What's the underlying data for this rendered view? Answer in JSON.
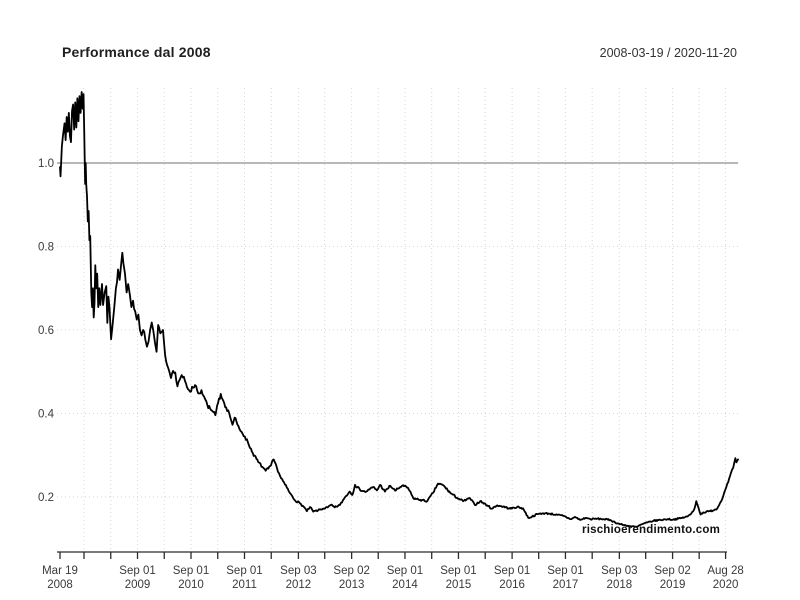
{
  "header": {
    "title": "Performance dal 2008",
    "date_range": "2008-03-19 / 2020-11-20"
  },
  "watermark": "rischioerendimento.com",
  "colors": {
    "line": "#000000",
    "baseline": "#8c8c8c",
    "grid_dotted": "#d6d6d6",
    "axis": "#2b2b2b",
    "tick_text": "#3a3a3a",
    "background": "#ffffff"
  },
  "chart_data": {
    "type": "line",
    "title": "Performance dal 2008",
    "subtitle_range": "2008-03-19 / 2020-11-20",
    "grid": {
      "h_dotted": [
        0.2,
        0.4,
        0.6,
        0.8
      ],
      "baseline_solid": 1.0,
      "v_dotted": "all-ticks-except-first"
    },
    "x_axis": {
      "start": 2008.215,
      "end": 2020.89,
      "major_ticks": [
        {
          "t": 2008.215,
          "line1": "Mar 19",
          "line2": "2008"
        },
        {
          "t": 2009.664,
          "line1": "Sep 01",
          "line2": "2009"
        },
        {
          "t": 2010.664,
          "line1": "Sep 01",
          "line2": "2010"
        },
        {
          "t": 2011.664,
          "line1": "Sep 01",
          "line2": "2011"
        },
        {
          "t": 2012.672,
          "line1": "Sep 03",
          "line2": "2012"
        },
        {
          "t": 2013.667,
          "line1": "Sep 02",
          "line2": "2013"
        },
        {
          "t": 2014.664,
          "line1": "Sep 01",
          "line2": "2014"
        },
        {
          "t": 2015.664,
          "line1": "Sep 01",
          "line2": "2015"
        },
        {
          "t": 2016.667,
          "line1": "Sep 01",
          "line2": "2016"
        },
        {
          "t": 2017.664,
          "line1": "Sep 01",
          "line2": "2017"
        },
        {
          "t": 2018.672,
          "line1": "Sep 03",
          "line2": "2018"
        },
        {
          "t": 2019.667,
          "line1": "Sep 02",
          "line2": "2019"
        },
        {
          "t": 2020.658,
          "line1": "Aug 28",
          "line2": "2020"
        }
      ],
      "minor_ticks": [
        2008.664,
        2009.164,
        2010.164,
        2011.164,
        2012.164,
        2013.164,
        2014.164,
        2015.164,
        2016.164,
        2017.164,
        2018.164,
        2019.164,
        2020.164
      ]
    },
    "y_axis": {
      "ticks": [
        1.0,
        0.8,
        0.6,
        0.4,
        0.2
      ],
      "labels": [
        "1.0",
        "0.8",
        "0.6",
        "0.4",
        "0.2"
      ],
      "range": [
        0.11,
        1.18
      ]
    },
    "series": [
      {
        "name": "performance",
        "color": "#000000",
        "points": [
          [
            2008.215,
            0.99
          ],
          [
            2008.225,
            0.968
          ],
          [
            2008.25,
            1.04
          ],
          [
            2008.27,
            1.065
          ],
          [
            2008.3,
            1.095
          ],
          [
            2008.32,
            1.055
          ],
          [
            2008.34,
            1.11
          ],
          [
            2008.36,
            1.075
          ],
          [
            2008.38,
            1.12
          ],
          [
            2008.4,
            1.065
          ],
          [
            2008.42,
            1.05
          ],
          [
            2008.44,
            1.125
          ],
          [
            2008.46,
            1.14
          ],
          [
            2008.48,
            1.08
          ],
          [
            2008.5,
            1.145
          ],
          [
            2008.52,
            1.085
          ],
          [
            2008.54,
            1.155
          ],
          [
            2008.56,
            1.1
          ],
          [
            2008.58,
            1.16
          ],
          [
            2008.6,
            1.12
          ],
          [
            2008.62,
            1.17
          ],
          [
            2008.64,
            1.13
          ],
          [
            2008.655,
            1.165
          ],
          [
            2008.67,
            1.06
          ],
          [
            2008.685,
            0.95
          ],
          [
            2008.695,
            1.0
          ],
          [
            2008.705,
            0.95
          ],
          [
            2008.72,
            0.92
          ],
          [
            2008.735,
            0.86
          ],
          [
            2008.75,
            0.885
          ],
          [
            2008.765,
            0.815
          ],
          [
            2008.78,
            0.825
          ],
          [
            2008.8,
            0.69
          ],
          [
            2008.815,
            0.655
          ],
          [
            2008.83,
            0.7
          ],
          [
            2008.845,
            0.63
          ],
          [
            2008.86,
            0.665
          ],
          [
            2008.875,
            0.755
          ],
          [
            2008.89,
            0.7
          ],
          [
            2008.91,
            0.735
          ],
          [
            2008.93,
            0.655
          ],
          [
            2008.95,
            0.7
          ],
          [
            2008.97,
            0.66
          ],
          [
            2009.0,
            0.71
          ],
          [
            2009.02,
            0.66
          ],
          [
            2009.05,
            0.69
          ],
          [
            2009.08,
            0.705
          ],
          [
            2009.1,
            0.617
          ],
          [
            2009.12,
            0.68
          ],
          [
            2009.14,
            0.655
          ],
          [
            2009.17,
            0.578
          ],
          [
            2009.2,
            0.615
          ],
          [
            2009.23,
            0.655
          ],
          [
            2009.26,
            0.7
          ],
          [
            2009.3,
            0.745
          ],
          [
            2009.33,
            0.72
          ],
          [
            2009.36,
            0.76
          ],
          [
            2009.38,
            0.785
          ],
          [
            2009.4,
            0.76
          ],
          [
            2009.43,
            0.735
          ],
          [
            2009.46,
            0.69
          ],
          [
            2009.49,
            0.71
          ],
          [
            2009.52,
            0.685
          ],
          [
            2009.55,
            0.655
          ],
          [
            2009.58,
            0.67
          ],
          [
            2009.62,
            0.645
          ],
          [
            2009.65,
            0.625
          ],
          [
            2009.68,
            0.637
          ],
          [
            2009.71,
            0.6
          ],
          [
            2009.74,
            0.587
          ],
          [
            2009.77,
            0.6
          ],
          [
            2009.81,
            0.577
          ],
          [
            2009.84,
            0.56
          ],
          [
            2009.87,
            0.572
          ],
          [
            2009.9,
            0.6
          ],
          [
            2009.93,
            0.618
          ],
          [
            2009.96,
            0.598
          ],
          [
            2009.99,
            0.57
          ],
          [
            2010.02,
            0.548
          ],
          [
            2010.05,
            0.612
          ],
          [
            2010.09,
            0.592
          ],
          [
            2010.14,
            0.6
          ],
          [
            2010.18,
            0.54
          ],
          [
            2010.22,
            0.515
          ],
          [
            2010.26,
            0.5
          ],
          [
            2010.29,
            0.485
          ],
          [
            2010.33,
            0.502
          ],
          [
            2010.37,
            0.498
          ],
          [
            2010.41,
            0.465
          ],
          [
            2010.45,
            0.48
          ],
          [
            2010.49,
            0.492
          ],
          [
            2010.53,
            0.488
          ],
          [
            2010.57,
            0.472
          ],
          [
            2010.61,
            0.458
          ],
          [
            2010.65,
            0.452
          ],
          [
            2010.7,
            0.462
          ],
          [
            2010.74,
            0.468
          ],
          [
            2010.78,
            0.455
          ],
          [
            2010.82,
            0.448
          ],
          [
            2010.86,
            0.456
          ],
          [
            2010.91,
            0.44
          ],
          [
            2010.97,
            0.42
          ],
          [
            2011.04,
            0.408
          ],
          [
            2011.12,
            0.396
          ],
          [
            2011.17,
            0.425
          ],
          [
            2011.22,
            0.447
          ],
          [
            2011.27,
            0.43
          ],
          [
            2011.32,
            0.415
          ],
          [
            2011.38,
            0.4
          ],
          [
            2011.44,
            0.373
          ],
          [
            2011.48,
            0.39
          ],
          [
            2011.53,
            0.374
          ],
          [
            2011.57,
            0.363
          ],
          [
            2011.61,
            0.356
          ],
          [
            2011.67,
            0.345
          ],
          [
            2011.73,
            0.33
          ],
          [
            2011.82,
            0.305
          ],
          [
            2011.92,
            0.284
          ],
          [
            2012.0,
            0.272
          ],
          [
            2012.06,
            0.263
          ],
          [
            2012.11,
            0.268
          ],
          [
            2012.16,
            0.276
          ],
          [
            2012.21,
            0.29
          ],
          [
            2012.27,
            0.27
          ],
          [
            2012.33,
            0.25
          ],
          [
            2012.42,
            0.23
          ],
          [
            2012.51,
            0.21
          ],
          [
            2012.6,
            0.193
          ],
          [
            2012.7,
            0.185
          ],
          [
            2012.79,
            0.174
          ],
          [
            2012.83,
            0.166
          ],
          [
            2012.89,
            0.176
          ],
          [
            2012.95,
            0.165
          ],
          [
            2013.04,
            0.168
          ],
          [
            2013.13,
            0.172
          ],
          [
            2013.22,
            0.175
          ],
          [
            2013.28,
            0.181
          ],
          [
            2013.35,
            0.175
          ],
          [
            2013.45,
            0.181
          ],
          [
            2013.54,
            0.199
          ],
          [
            2013.63,
            0.213
          ],
          [
            2013.68,
            0.205
          ],
          [
            2013.73,
            0.229
          ],
          [
            2013.82,
            0.218
          ],
          [
            2013.92,
            0.212
          ],
          [
            2014.0,
            0.218
          ],
          [
            2014.07,
            0.224
          ],
          [
            2014.14,
            0.216
          ],
          [
            2014.2,
            0.229
          ],
          [
            2014.29,
            0.213
          ],
          [
            2014.39,
            0.227
          ],
          [
            2014.48,
            0.215
          ],
          [
            2014.61,
            0.227
          ],
          [
            2014.72,
            0.222
          ],
          [
            2014.82,
            0.197
          ],
          [
            2014.95,
            0.193
          ],
          [
            2015.08,
            0.19
          ],
          [
            2015.19,
            0.21
          ],
          [
            2015.28,
            0.232
          ],
          [
            2015.38,
            0.228
          ],
          [
            2015.51,
            0.21
          ],
          [
            2015.64,
            0.198
          ],
          [
            2015.75,
            0.19
          ],
          [
            2015.88,
            0.197
          ],
          [
            2015.97,
            0.181
          ],
          [
            2016.07,
            0.19
          ],
          [
            2016.2,
            0.18
          ],
          [
            2016.29,
            0.172
          ],
          [
            2016.39,
            0.18
          ],
          [
            2016.5,
            0.177
          ],
          [
            2016.63,
            0.172
          ],
          [
            2016.76,
            0.176
          ],
          [
            2016.87,
            0.173
          ],
          [
            2016.97,
            0.15
          ],
          [
            2017.04,
            0.153
          ],
          [
            2017.14,
            0.159
          ],
          [
            2017.25,
            0.161
          ],
          [
            2017.38,
            0.16
          ],
          [
            2017.51,
            0.157
          ],
          [
            2017.62,
            0.155
          ],
          [
            2017.76,
            0.147
          ],
          [
            2017.85,
            0.152
          ],
          [
            2017.94,
            0.145
          ],
          [
            2018.04,
            0.15
          ],
          [
            2018.13,
            0.147
          ],
          [
            2018.26,
            0.148
          ],
          [
            2018.37,
            0.147
          ],
          [
            2018.5,
            0.145
          ],
          [
            2018.63,
            0.137
          ],
          [
            2018.75,
            0.133
          ],
          [
            2018.88,
            0.13
          ],
          [
            2019.0,
            0.128
          ],
          [
            2019.06,
            0.133
          ],
          [
            2019.2,
            0.139
          ],
          [
            2019.31,
            0.143
          ],
          [
            2019.44,
            0.145
          ],
          [
            2019.57,
            0.147
          ],
          [
            2019.68,
            0.146
          ],
          [
            2019.81,
            0.149
          ],
          [
            2019.94,
            0.153
          ],
          [
            2020.0,
            0.158
          ],
          [
            2020.07,
            0.17
          ],
          [
            2020.11,
            0.19
          ],
          [
            2020.15,
            0.175
          ],
          [
            2020.19,
            0.158
          ],
          [
            2020.24,
            0.163
          ],
          [
            2020.37,
            0.166
          ],
          [
            2020.5,
            0.172
          ],
          [
            2020.56,
            0.187
          ],
          [
            2020.62,
            0.205
          ],
          [
            2020.69,
            0.232
          ],
          [
            2020.74,
            0.25
          ],
          [
            2020.8,
            0.27
          ],
          [
            2020.84,
            0.293
          ],
          [
            2020.86,
            0.283
          ],
          [
            2020.89,
            0.29
          ]
        ]
      }
    ],
    "render": {
      "jitter_pct": 0.012,
      "jitter_seed": 7,
      "step_years": 0.016
    }
  }
}
